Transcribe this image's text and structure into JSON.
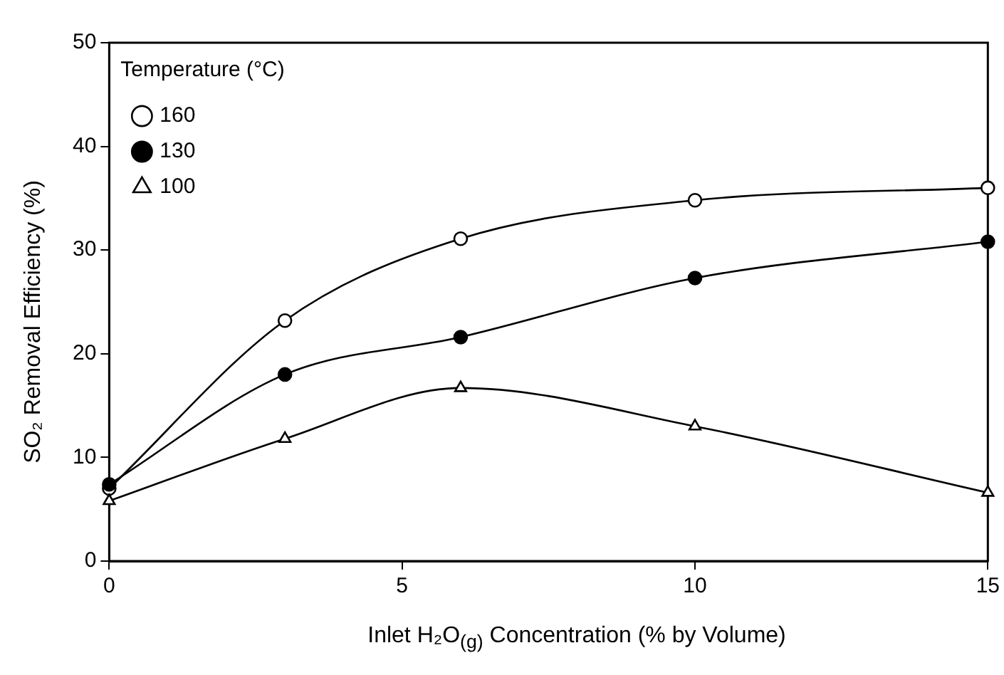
{
  "chart_data": {
    "type": "line",
    "xlabel": "Inlet  H₂O$_{(g)}$  Concentration (% by Volume)",
    "ylabel": "SO₂ Removal Efficiency (%)",
    "legend_title": "Temperature (°C)",
    "legend": "top left",
    "x": [
      0,
      3,
      6,
      10,
      15
    ],
    "xlim": [
      0,
      15
    ],
    "xticks": [
      0,
      5,
      10,
      15
    ],
    "ylim": [
      0,
      50
    ],
    "yticks": [
      0,
      10,
      20,
      30,
      40,
      50
    ],
    "grid": false,
    "series": [
      {
        "name": "160",
        "color": "#000000",
        "marker": "circle",
        "colors": [
          "#ffffff",
          "#ffffff",
          "#ffffff",
          "#ffffff",
          "#ffffff"
        ],
        "values": [
          7,
          23.2,
          31.1,
          34.8,
          36
        ]
      },
      {
        "name": "130",
        "color": "#000000",
        "marker": "circle",
        "colors": [
          "#000000",
          "#000000",
          "#000000",
          "#000000",
          "#000000"
        ],
        "values": [
          7.4,
          18,
          21.6,
          27.3,
          30.8
        ]
      },
      {
        "name": "100",
        "color": "#000000",
        "marker": "triangle",
        "colors": [
          "#ffffff",
          "#ffffff",
          "#ffffff",
          "#ffffff",
          "#ffffff"
        ],
        "values": [
          5.8,
          11.8,
          16.7,
          13,
          6.6
        ]
      }
    ]
  }
}
